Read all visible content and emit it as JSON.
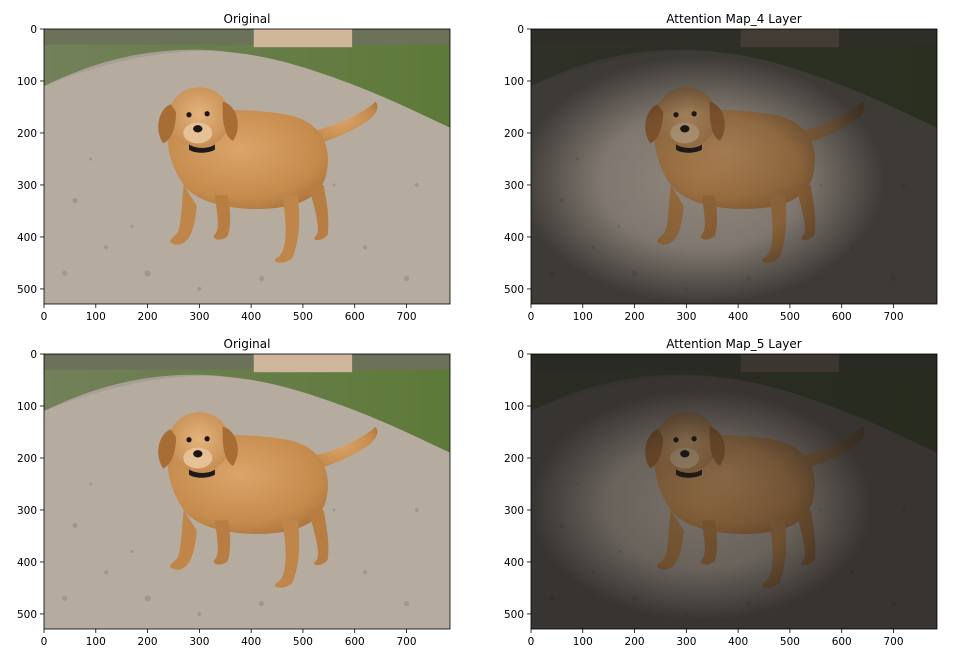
{
  "figure": {
    "panels": [
      {
        "title": "Original",
        "image": "golden-retriever-puppy-photo",
        "attention_overlay": false
      },
      {
        "title": "Attention Map_4 Layer",
        "image": "golden-retriever-puppy-photo",
        "attention_overlay": true
      },
      {
        "title": "Original",
        "image": "golden-retriever-puppy-photo",
        "attention_overlay": false
      },
      {
        "title": "Attention Map_5 Layer",
        "image": "golden-retriever-puppy-photo",
        "attention_overlay": true
      }
    ]
  },
  "chart_data": [
    {
      "type": "heatmap",
      "title": "Original",
      "xlim": [
        0,
        784
      ],
      "ylim": [
        529,
        0
      ],
      "xticks": [
        0,
        100,
        200,
        300,
        400,
        500,
        600,
        700
      ],
      "yticks": [
        0,
        100,
        200,
        300,
        400,
        500
      ],
      "grid": false
    },
    {
      "type": "heatmap",
      "title": "Attention Map_4 Layer",
      "xlim": [
        0,
        784
      ],
      "ylim": [
        529,
        0
      ],
      "xticks": [
        0,
        100,
        200,
        300,
        400,
        500,
        600,
        700
      ],
      "yticks": [
        0,
        100,
        200,
        300,
        400,
        500
      ],
      "grid": false
    },
    {
      "type": "heatmap",
      "title": "Original",
      "xlim": [
        0,
        784
      ],
      "ylim": [
        529,
        0
      ],
      "xticks": [
        0,
        100,
        200,
        300,
        400,
        500,
        600,
        700
      ],
      "yticks": [
        0,
        100,
        200,
        300,
        400,
        500
      ],
      "grid": false
    },
    {
      "type": "heatmap",
      "title": "Attention Map_5 Layer",
      "xlim": [
        0,
        784
      ],
      "ylim": [
        529,
        0
      ],
      "xticks": [
        0,
        100,
        200,
        300,
        400,
        500,
        600,
        700
      ],
      "yticks": [
        0,
        100,
        200,
        300,
        400,
        500
      ],
      "grid": false
    }
  ],
  "colors": {
    "road": "#b8ada2",
    "grass": "#6f8f4a",
    "fur": "#c99255",
    "shade": "#1c1a19"
  }
}
